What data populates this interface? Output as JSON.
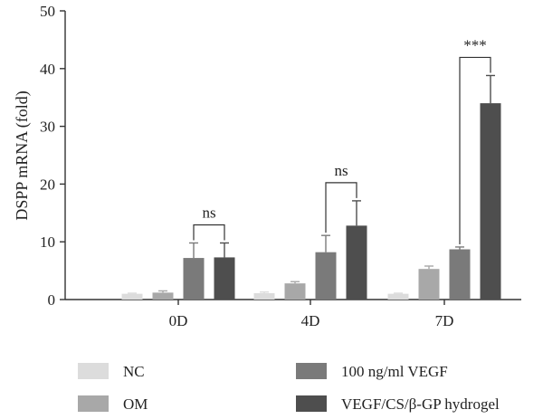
{
  "chart_data": {
    "type": "bar",
    "categories": [
      "0D",
      "4D",
      "7D"
    ],
    "ylabel": "DSPP mRNA (fold)",
    "xlabel": "",
    "ylim": [
      0,
      50
    ],
    "yticks": [
      0,
      10,
      20,
      30,
      40,
      50
    ],
    "grid": false,
    "legend_position": "bottom",
    "series": [
      {
        "name": "NC",
        "color": "#dcdcdc",
        "values": [
          1.0,
          1.1,
          1.0
        ],
        "errors": [
          0.1,
          0.2,
          0.1
        ]
      },
      {
        "name": "OM",
        "color": "#a8a8a8",
        "values": [
          1.2,
          2.8,
          5.3
        ],
        "errors": [
          0.3,
          0.3,
          0.5
        ]
      },
      {
        "name": "100 ng/ml VEGF",
        "color": "#7a7a7a",
        "values": [
          7.2,
          8.2,
          8.7
        ],
        "errors": [
          2.6,
          2.9,
          0.4
        ]
      },
      {
        "name": "VEGF/CS/β-GP hydrogel",
        "color": "#4e4e4e",
        "values": [
          7.3,
          12.8,
          34.0
        ],
        "errors": [
          2.5,
          4.3,
          4.8
        ]
      }
    ],
    "annotations": [
      {
        "category": "0D",
        "between": [
          2,
          3
        ],
        "label": "ns"
      },
      {
        "category": "4D",
        "between": [
          2,
          3
        ],
        "label": "ns"
      },
      {
        "category": "7D",
        "between": [
          2,
          3
        ],
        "label": "***"
      }
    ]
  }
}
